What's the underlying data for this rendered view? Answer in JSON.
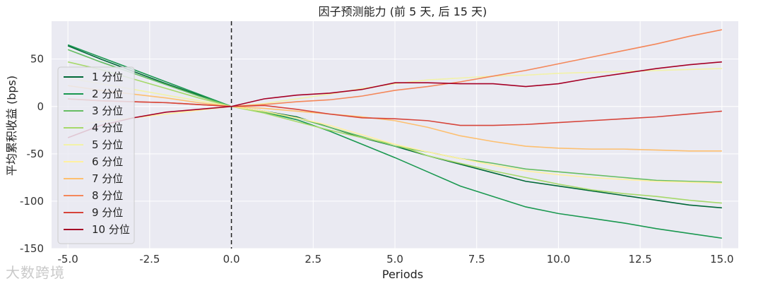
{
  "watermark": "大数跨境",
  "chart_data": {
    "type": "line",
    "title": "因子预测能力 (前 5 天, 后 15 天)",
    "xlabel": "Periods",
    "ylabel": "平均累积收益 (bps)",
    "xlim": [
      -5.5,
      15.5
    ],
    "ylim": [
      -150,
      90
    ],
    "xticks": [
      -5.0,
      -2.5,
      0.0,
      2.5,
      5.0,
      7.5,
      10.0,
      12.5,
      15.0
    ],
    "xtick_labels": [
      "-5.0",
      "-2.5",
      "0.0",
      "2.5",
      "5.0",
      "7.5",
      "10.0",
      "12.5",
      "15.0"
    ],
    "yticks": [
      -150,
      -100,
      -50,
      0,
      50
    ],
    "ytick_labels": [
      "-150",
      "-100",
      "-50",
      "0",
      "50"
    ],
    "grid": true,
    "vline_x": 0,
    "legend_position": "left",
    "x": [
      -5,
      -4,
      -3,
      -2,
      -1,
      0,
      1,
      2,
      3,
      4,
      5,
      6,
      7,
      8,
      9,
      10,
      11,
      12,
      13,
      14,
      15
    ],
    "series": [
      {
        "name": "1 分位",
        "color": "#006837",
        "values": [
          64,
          50,
          37,
          24,
          12,
          0,
          -5,
          -11,
          -22,
          -33,
          -42,
          -52,
          -61,
          -70,
          -79,
          -84,
          -89,
          -94,
          -99,
          -104,
          -107
        ]
      },
      {
        "name": "2 分位",
        "color": "#1a9850",
        "values": [
          65,
          52,
          39,
          26,
          13,
          0,
          -6,
          -14,
          -26,
          -40,
          -54,
          -69,
          -84,
          -95,
          -106,
          -113,
          -118,
          -123,
          -129,
          -134,
          -139
        ]
      },
      {
        "name": "3 分位",
        "color": "#66bd63",
        "values": [
          60,
          47,
          35,
          23,
          11,
          0,
          -6,
          -12,
          -22,
          -32,
          -42,
          -48,
          -55,
          -60,
          -66,
          -69,
          -72,
          -75,
          -78,
          -79,
          -80
        ]
      },
      {
        "name": "4 分位",
        "color": "#a6d96a",
        "values": [
          47,
          39,
          29,
          19,
          9,
          0,
          -7,
          -16,
          -25,
          -33,
          -40,
          -52,
          -60,
          -68,
          -75,
          -82,
          -88,
          -92,
          -95,
          -99,
          -102
        ]
      },
      {
        "name": "5 分位",
        "color": "#f2f2a8",
        "values": [
          30,
          24,
          18,
          12,
          6,
          0,
          3,
          8,
          13,
          19,
          24,
          28,
          30,
          32,
          33,
          35,
          36,
          37,
          38,
          39,
          40
        ]
      },
      {
        "name": "6 分位",
        "color": "#fff0a0",
        "values": [
          -20,
          -16,
          -12,
          -8,
          -4,
          0,
          -5,
          -12,
          -20,
          -30,
          -40,
          -48,
          -55,
          -62,
          -68,
          -72,
          -75,
          -77,
          -79,
          -80,
          -81
        ]
      },
      {
        "name": "7 分位",
        "color": "#fdbf6f",
        "values": [
          22,
          17,
          13,
          9,
          4,
          0,
          -2,
          -5,
          -8,
          -11,
          -15,
          -22,
          -31,
          -37,
          -42,
          -44,
          -45,
          -45,
          -46,
          -47,
          -47
        ]
      },
      {
        "name": "8 分位",
        "color": "#f4875a",
        "values": [
          8,
          6,
          5,
          4,
          2,
          0,
          2,
          5,
          7,
          11,
          17,
          21,
          26,
          32,
          38,
          45,
          52,
          59,
          66,
          74,
          81
        ]
      },
      {
        "name": "9 分位",
        "color": "#d6443a",
        "values": [
          8,
          6,
          5,
          4,
          2,
          0,
          1,
          -3,
          -8,
          -12,
          -13,
          -15,
          -20,
          -20,
          -19,
          -17,
          -15,
          -13,
          -11,
          -8,
          -5
        ]
      },
      {
        "name": "10 分位",
        "color": "#a50026",
        "values": [
          -33,
          -20,
          -12,
          -6,
          -3,
          0,
          8,
          12,
          14,
          18,
          25,
          25,
          24,
          24,
          21,
          24,
          30,
          35,
          40,
          44,
          47
        ]
      }
    ]
  }
}
